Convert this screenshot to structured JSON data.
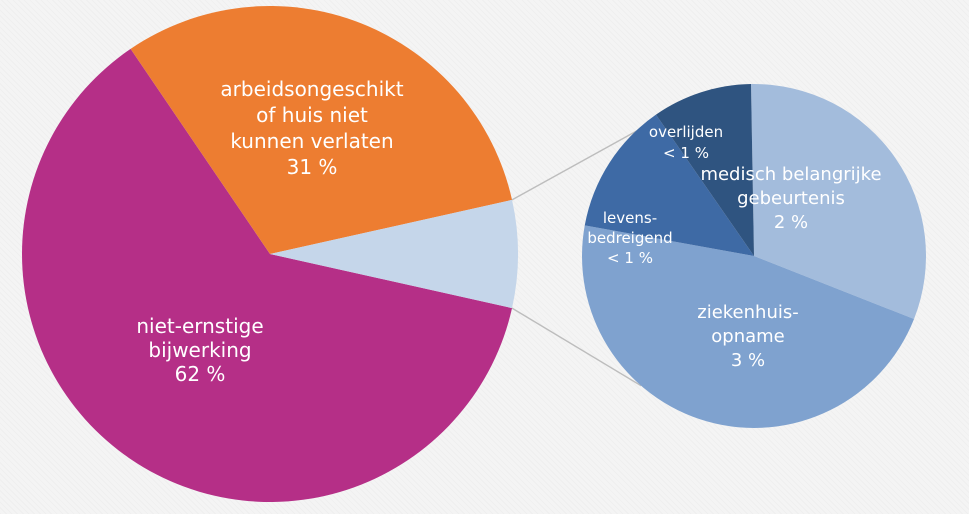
{
  "chart_data": {
    "type": "pie",
    "title": "",
    "main_pie": {
      "slices": [
        {
          "label_lines": [
            "niet-ernstige",
            "bijwerking",
            "62 %"
          ],
          "value": 62,
          "color": "#b52f87"
        },
        {
          "label_lines": [
            "arbeidsongeschikt",
            "of huis niet",
            "kunnen verlaten",
            "31 %"
          ],
          "value": 31,
          "color": "#ed7d31"
        },
        {
          "label_lines": [],
          "value": 7,
          "color": "#c5d6ea",
          "exploded": true
        }
      ]
    },
    "secondary_pie": {
      "slices": [
        {
          "label_lines": [
            "medisch belangrijke",
            "gebeurtenis",
            "2 %"
          ],
          "value": 2,
          "color": "#a3bcdc"
        },
        {
          "label_lines": [
            "ziekenhuis-",
            "opname",
            "3 %"
          ],
          "value": 3,
          "color": "#7fa2cf"
        },
        {
          "label_lines": [
            "levens-",
            "bedreigend",
            "< 1 %"
          ],
          "value": 0.8,
          "color": "#3e6aa5"
        },
        {
          "label_lines": [
            "overlijden",
            "< 1 %"
          ],
          "value": 0.6,
          "color": "#2f5480"
        }
      ]
    }
  }
}
